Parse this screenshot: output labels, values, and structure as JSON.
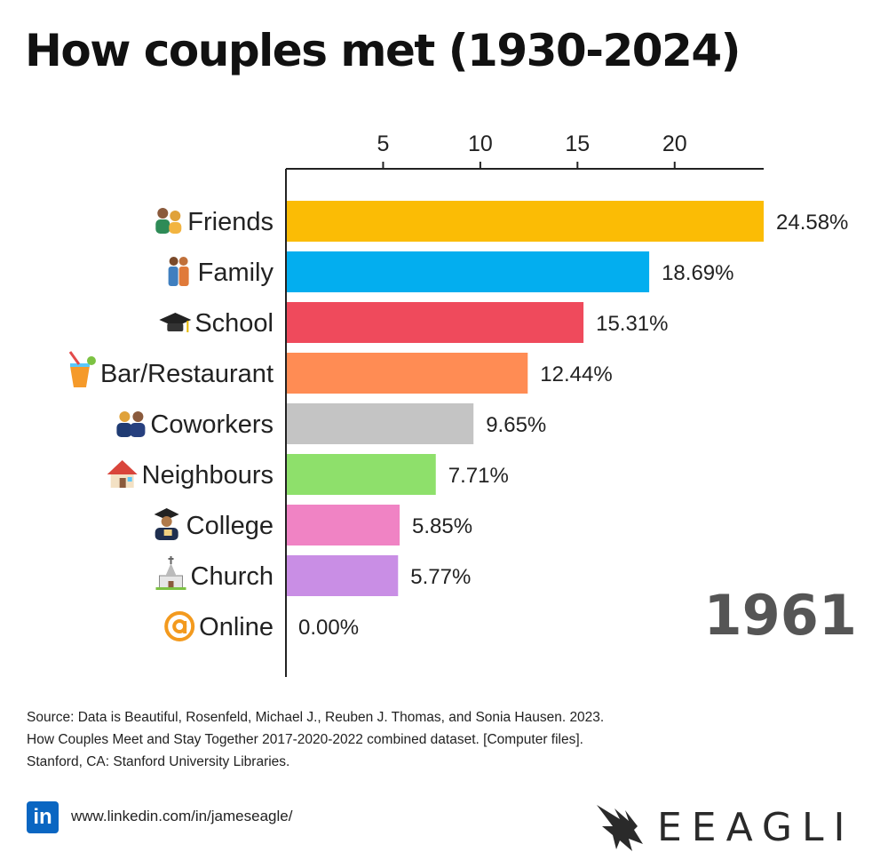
{
  "title": "How couples met (1930-2024)",
  "chart_data": {
    "type": "bar",
    "orientation": "horizontal",
    "title": "How couples met (1930-2024)",
    "year": "1961",
    "xlim": [
      0,
      24.58
    ],
    "xticks": [
      5,
      10,
      15,
      20
    ],
    "grid": true,
    "categories": [
      "Friends",
      "Family",
      "School",
      "Bar/Restaurant",
      "Coworkers",
      "Neighbours",
      "College",
      "Church",
      "Online"
    ],
    "values": [
      24.58,
      18.69,
      15.31,
      12.44,
      9.65,
      7.71,
      5.85,
      5.77,
      0.0
    ],
    "value_labels": [
      "24.58%",
      "18.69%",
      "15.31%",
      "12.44%",
      "9.65%",
      "7.71%",
      "5.85%",
      "5.77%",
      "0.00%"
    ],
    "colors": [
      "#fbbc05",
      "#03aeef",
      "#ef4a5c",
      "#ff8c54",
      "#c4c4c4",
      "#8ee06b",
      "#f083c4",
      "#c98ee5",
      "#9e9e9e"
    ],
    "icons": [
      "couple-icon",
      "family-icon",
      "graduation-cap-icon",
      "tropical-drink-icon",
      "coworkers-icon",
      "house-icon",
      "graduate-icon",
      "church-icon",
      "at-sign-icon"
    ]
  },
  "source": {
    "lines": [
      "Source: Data is Beautiful, Rosenfeld, Michael J., Reuben J. Thomas, and Sonia Hausen. 2023.",
      "How Couples Meet and Stay Together 2017-2020-2022 combined dataset. [Computer files].",
      "Stanford, CA: Stanford University Libraries."
    ]
  },
  "footer": {
    "linkedin_icon_text": "in",
    "linkedin_url": "www.linkedin.com/in/jameseagle/",
    "brand_name": "EEAGLI"
  }
}
